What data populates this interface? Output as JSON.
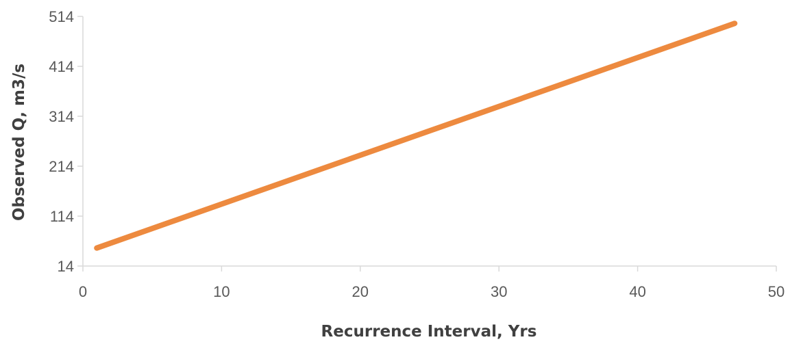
{
  "chart_data": {
    "type": "line",
    "title": "",
    "xlabel": "Recurrence Interval, Yrs",
    "ylabel": "Observed Q, m3/s",
    "xlim": [
      0,
      50
    ],
    "ylim": [
      14,
      514
    ],
    "x_ticks": [
      "0",
      "10",
      "20",
      "30",
      "40",
      "50"
    ],
    "y_ticks": [
      "14",
      "114",
      "214",
      "314",
      "414",
      "514"
    ],
    "grid": false,
    "legend": "none",
    "series": [
      {
        "color": "#ED8A3F",
        "x": [
          1,
          47
        ],
        "y": [
          50,
          500
        ]
      }
    ]
  }
}
